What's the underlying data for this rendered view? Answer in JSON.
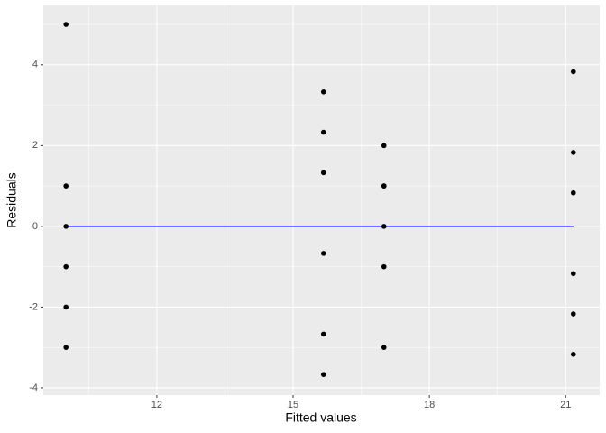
{
  "chart_data": {
    "type": "scatter",
    "x_label": "Fitted values",
    "y_label": "Residuals",
    "x": [
      10,
      10,
      10,
      10,
      10,
      10,
      15.67,
      15.67,
      15.67,
      15.67,
      15.67,
      15.67,
      17,
      17,
      17,
      17,
      17,
      17,
      21.17,
      21.17,
      21.17,
      21.17,
      21.17,
      21.17
    ],
    "values": [
      5,
      1,
      0,
      -1,
      -2,
      -3,
      3.33,
      2.33,
      1.33,
      -0.67,
      -2.67,
      -3.67,
      2,
      1,
      1,
      0,
      -1,
      -3,
      3.83,
      1.83,
      0.83,
      -1.17,
      -2.17,
      -3.17
    ],
    "color": "#000000",
    "smooth": {
      "x": [
        10,
        21.17
      ],
      "values": [
        0,
        0
      ],
      "color": "#0000ff"
    },
    "xlim": [
      9.5,
      21.75
    ],
    "ylim": [
      -4.18,
      5.47
    ],
    "xticks": [
      12,
      15,
      18,
      21
    ],
    "yticks": [
      -4,
      -2,
      0,
      2,
      4
    ],
    "xminorticks": [
      10.5,
      13.5,
      16.5,
      19.5
    ],
    "yminorticks": [
      -3,
      -1,
      1,
      3,
      5
    ],
    "grid": true
  }
}
